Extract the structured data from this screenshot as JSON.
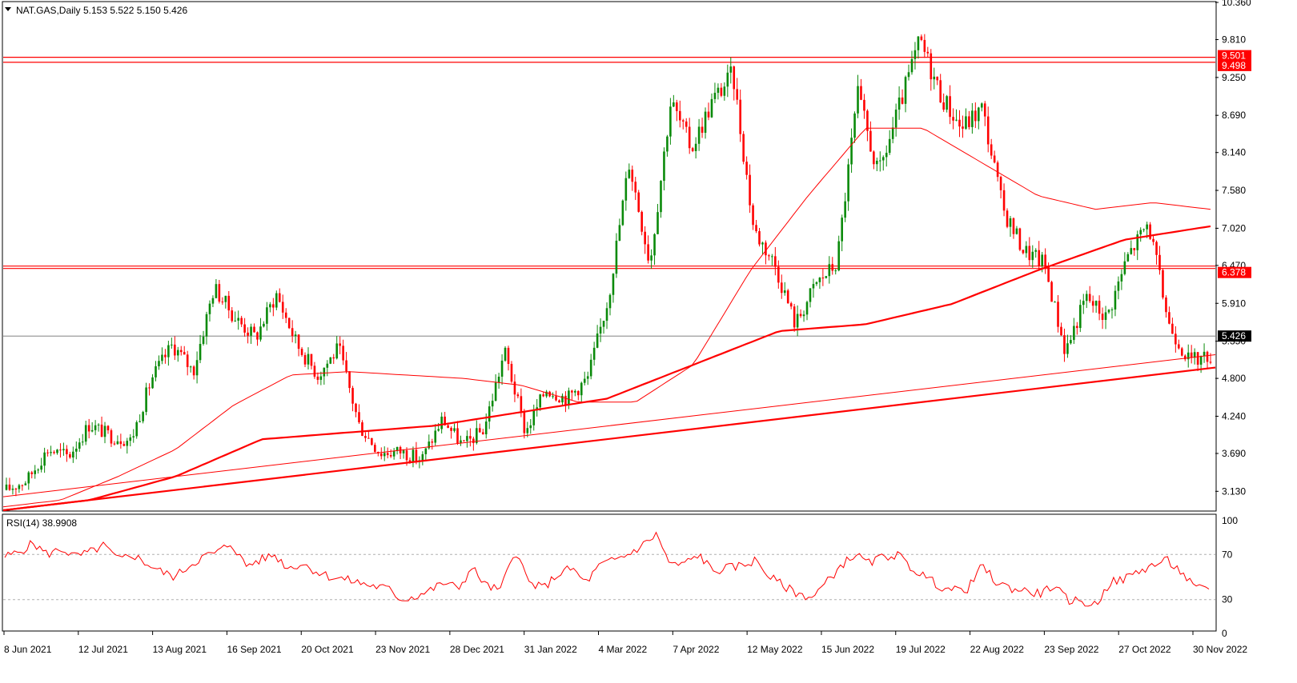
{
  "header": {
    "menu_icon": "triangle-down-icon",
    "symbol": "NAT.GAS,Daily",
    "ohlc": "5.153 5.522 5.150 5.426"
  },
  "rsi_header": "RSI(14) 38.9908",
  "colors": {
    "bull": "#0a8a0a",
    "bear": "#ff0000",
    "ma": "#ff0000",
    "level": "#ff0000",
    "current_line": "#707070",
    "frame": "#000000"
  },
  "chart_data": [
    {
      "type": "candlestick",
      "ylim": [
        2.85,
        10.36
      ],
      "y_ticks": [
        "10.360",
        "9.810",
        "9.250",
        "8.690",
        "8.140",
        "7.580",
        "7.020",
        "6.470",
        "5.910",
        "5.350",
        "4.800",
        "4.240",
        "3.690",
        "3.130"
      ],
      "x_labels": [
        "8 Jun 2021",
        "12 Jul 2021",
        "13 Aug 2021",
        "16 Sep 2021",
        "20 Oct 2021",
        "23 Nov 2021",
        "28 Dec 2021",
        "31 Jan 2022",
        "4 Mar 2022",
        "7 Apr 2022",
        "12 May 2022",
        "15 Jun 2022",
        "19 Jul 2022",
        "22 Aug 2022",
        "23 Sep 2022",
        "27 Oct 2022",
        "30 Nov 2022"
      ],
      "price_anchors": [
        3.15,
        3.3,
        3.75,
        3.65,
        4.12,
        3.95,
        3.88,
        4.8,
        5.3,
        4.9,
        6.15,
        5.7,
        5.4,
        6.05,
        5.3,
        4.85,
        5.25,
        4.1,
        3.7,
        3.72,
        3.6,
        4.2,
        3.8,
        4.05,
        5.2,
        4.0,
        4.65,
        4.5,
        4.8,
        6.0,
        8.0,
        6.5,
        8.9,
        8.2,
        8.9,
        9.3,
        7.0,
        6.5,
        5.6,
        6.2,
        6.5,
        9.0,
        7.8,
        8.8,
        9.8,
        9.0,
        8.5,
        8.8,
        7.3,
        6.7,
        6.5,
        5.2,
        6.0,
        5.7,
        6.6,
        7.1,
        5.6,
        5.05,
        5.15
      ],
      "horizontal_levels": [
        {
          "value": 9.501,
          "label": "9.501"
        },
        {
          "value": 9.498,
          "label": "9.498"
        },
        {
          "value": 6.378,
          "label": "6.378"
        }
      ],
      "current_price": {
        "value": 5.426,
        "label": "5.426"
      },
      "series": [
        {
          "kind": "candles"
        },
        {
          "kind": "moving-average-fast",
          "anchors": [
            2.9,
            3.0,
            3.35,
            3.75,
            4.4,
            4.85,
            4.9,
            4.85,
            4.8,
            4.7,
            4.45,
            4.45,
            5.0,
            6.4,
            7.5,
            8.5,
            8.5,
            8.0,
            7.5,
            7.3,
            7.4,
            7.3
          ]
        },
        {
          "kind": "moving-average-slow",
          "anchors": [
            2.85,
            3.0,
            3.35,
            3.9,
            4.0,
            4.1,
            4.3,
            4.5,
            5.0,
            5.5,
            5.6,
            5.9,
            6.4,
            6.85,
            7.05
          ]
        },
        {
          "kind": "trendline",
          "from": 3.05,
          "to": 5.15
        },
        {
          "kind": "trendline",
          "from": 2.85,
          "to": 4.96
        }
      ]
    },
    {
      "type": "line",
      "title": "RSI(14) 38.9908",
      "ylim": [
        0,
        100
      ],
      "y_ticks": [
        "100",
        "70",
        "30",
        "0"
      ],
      "levels": [
        70,
        30
      ],
      "values": [
        68,
        72,
        80,
        70,
        75,
        68,
        72,
        78,
        65,
        70,
        62,
        55,
        50,
        60,
        68,
        72,
        80,
        60,
        65,
        70,
        58,
        62,
        55,
        50,
        48,
        45,
        42,
        40,
        30,
        33,
        38,
        45,
        40,
        58,
        42,
        38,
        75,
        45,
        40,
        52,
        58,
        45,
        60,
        65,
        70,
        78,
        88,
        60,
        62,
        70,
        55,
        58,
        60,
        65,
        50,
        42,
        35,
        32,
        45,
        60,
        70,
        62,
        68,
        70,
        58,
        50,
        42,
        38,
        40,
        60,
        45,
        40,
        38,
        35,
        42,
        30,
        28,
        25,
        45,
        48,
        55,
        60,
        65,
        55,
        40,
        39
      ]
    }
  ]
}
